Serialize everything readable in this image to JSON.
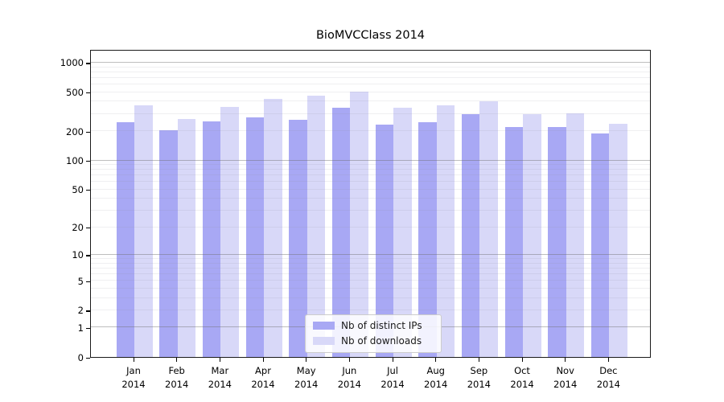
{
  "title": "BioMVCClass 2014",
  "colors": {
    "distinct_ips": "#a8a8f4",
    "downloads": "#d8d8f8",
    "axis": "#1a1a1a",
    "grid_major": "#6e6e6e",
    "grid_minor": "#e9e9ee",
    "legend_border": "#cccccc"
  },
  "legend": {
    "items": [
      {
        "label": "Nb of distinct IPs",
        "color": "#a8a8f4"
      },
      {
        "label": "Nb of downloads",
        "color": "#d8d8f8"
      }
    ]
  },
  "chart_data": {
    "type": "bar",
    "title": "BioMVCClass 2014",
    "categories": [
      "Jan 2014",
      "Feb 2014",
      "Mar 2014",
      "Apr 2014",
      "May 2014",
      "Jun 2014",
      "Jul 2014",
      "Aug 2014",
      "Sep 2014",
      "Oct 2014",
      "Nov 2014",
      "Dec 2014"
    ],
    "series": [
      {
        "name": "Nb of distinct IPs",
        "color": "#a8a8f4",
        "values": [
          248,
          203,
          250,
          275,
          263,
          347,
          233,
          245,
          296,
          222,
          222,
          190
        ]
      },
      {
        "name": "Nb of downloads",
        "color": "#d8d8f8",
        "values": [
          365,
          265,
          356,
          424,
          465,
          505,
          350,
          368,
          400,
          296,
          306,
          237
        ]
      }
    ],
    "xlabel": "",
    "ylabel": "",
    "yscale": "log1p",
    "y_tick_labels": [
      0,
      1,
      2,
      5,
      10,
      20,
      50,
      100,
      200,
      500,
      1000
    ],
    "ylim": [
      0,
      1380
    ],
    "grid": true,
    "grid_above_bars": true,
    "legend_position": "lower center"
  }
}
